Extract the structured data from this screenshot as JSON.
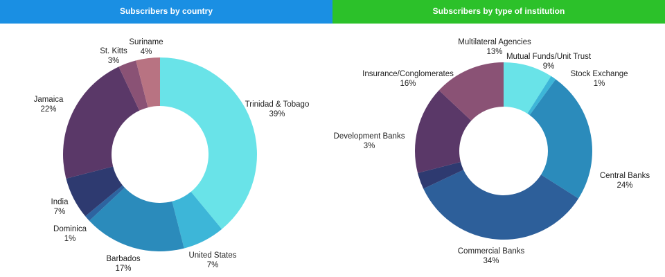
{
  "chart_data": [
    {
      "type": "pie",
      "title": "Subscribers by country",
      "header_color": "#1a8fe3",
      "categories": [
        "Trinidad & Tobago",
        "United States",
        "Barbados",
        "Dominica",
        "India",
        "Jamaica",
        "St. Kitts",
        "Suriname"
      ],
      "values": [
        39,
        7,
        17,
        1,
        7,
        22,
        3,
        4
      ],
      "value_labels": [
        "39%",
        "7%",
        "17%",
        "1%",
        "7%",
        "22%",
        "3%",
        "4%"
      ],
      "colors": [
        "#69e3e8",
        "#3db6d8",
        "#2b8bbb",
        "#2d64a0",
        "#2e3a70",
        "#5a3868",
        "#8a5275",
        "#b87382"
      ],
      "donut": true,
      "legend": "none"
    },
    {
      "type": "pie",
      "title": "Subscribers by type of institution",
      "header_color": "#2cc12a",
      "categories": [
        "Mutual Funds/Unit Trust",
        "Stock Exchange",
        "Central Banks",
        "Commercial Banks",
        "Development Banks",
        "Insurance/Conglomerates",
        "Multilateral Agencies"
      ],
      "values": [
        9,
        1,
        24,
        34,
        3,
        16,
        13
      ],
      "value_labels": [
        "9%",
        "1%",
        "24%",
        "34%",
        "3%",
        "16%",
        "13%"
      ],
      "colors": [
        "#69e3e8",
        "#3db6d8",
        "#2b8bbb",
        "#2d5f9a",
        "#2e3a70",
        "#5a3868",
        "#8a5275"
      ],
      "donut": true,
      "legend": "none"
    }
  ]
}
